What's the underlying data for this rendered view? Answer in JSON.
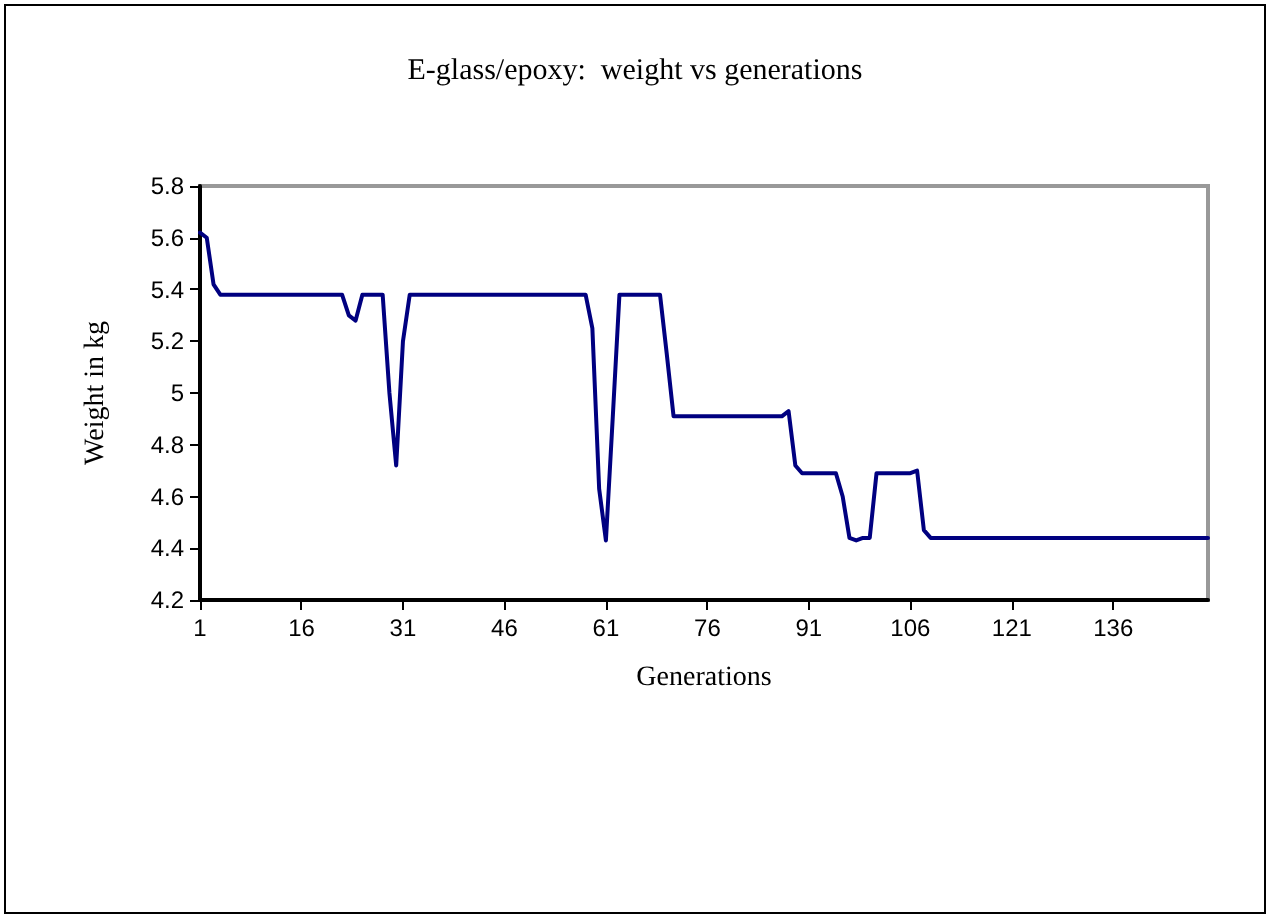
{
  "chart_data": {
    "type": "line",
    "title": "E-glass/epoxy:  weight vs generations",
    "xlabel": "Generations",
    "ylabel": "Weight in kg",
    "x": [
      1,
      2,
      3,
      4,
      22,
      23,
      24,
      25,
      28,
      29,
      30,
      31,
      32,
      58,
      59,
      60,
      61,
      62,
      63,
      69,
      70,
      71,
      87,
      88,
      89,
      90,
      95,
      96,
      97,
      98,
      99,
      100,
      101,
      106,
      107,
      108,
      109,
      150
    ],
    "series": [
      {
        "color": "#000080",
        "values": [
          5.62,
          5.6,
          5.42,
          5.38,
          5.38,
          5.3,
          5.28,
          5.38,
          5.38,
          5.0,
          4.72,
          5.2,
          5.38,
          5.38,
          5.25,
          4.63,
          4.43,
          4.9,
          5.38,
          5.38,
          5.15,
          4.91,
          4.91,
          4.93,
          4.72,
          4.69,
          4.69,
          4.6,
          4.44,
          4.43,
          4.44,
          4.44,
          4.69,
          4.69,
          4.7,
          4.47,
          4.44,
          4.44
        ]
      }
    ],
    "xlim": [
      1,
      150
    ],
    "xticks": [
      1,
      16,
      31,
      46,
      61,
      76,
      91,
      106,
      121,
      136
    ],
    "ylim": [
      4.2,
      5.8
    ],
    "yticks": [
      4.2,
      4.4,
      4.6,
      4.8,
      5,
      5.2,
      5.4,
      5.6,
      5.8
    ],
    "grid": false,
    "marker": "none",
    "line_style": "solid"
  }
}
